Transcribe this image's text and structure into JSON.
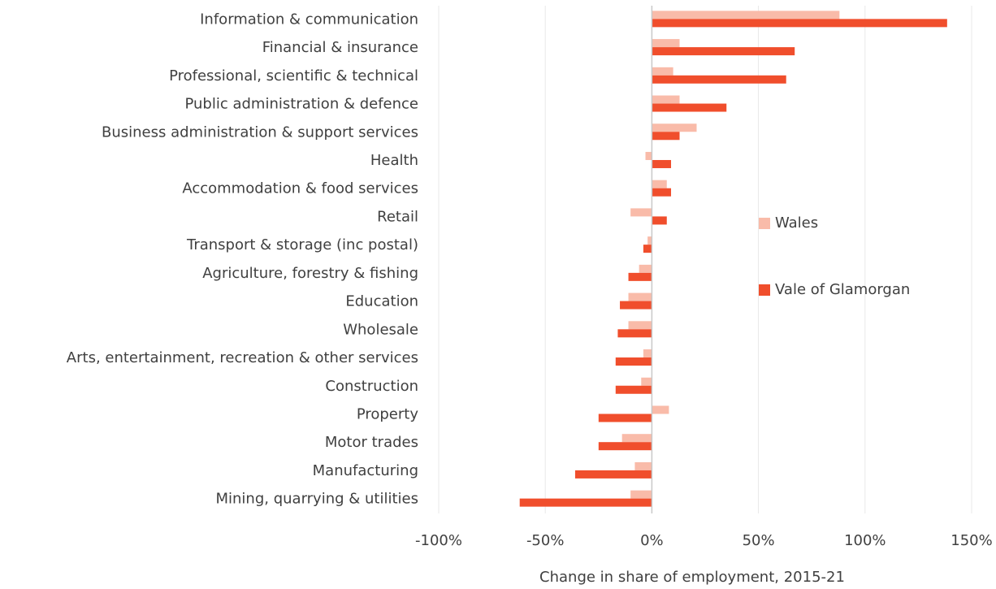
{
  "chart_data": {
    "type": "bar",
    "orientation": "horizontal",
    "x_label": "Change in share of employment, 2015-21",
    "categories": [
      "Information & communication",
      "Financial & insurance",
      "Professional, scientific & technical",
      "Public administration & defence",
      "Business administration & support services",
      "Health",
      "Accommodation & food services",
      "Retail",
      "Transport & storage (inc postal)",
      "Agriculture, forestry & fishing",
      "Education",
      "Wholesale",
      "Arts, entertainment, recreation & other services",
      "Construction",
      "Property",
      "Motor trades",
      "Manufacturing",
      "Mining, quarrying & utilities"
    ],
    "series": [
      {
        "name": "Wales",
        "color": "#f9bba9",
        "values": [
          88,
          13,
          10,
          13,
          21,
          -3,
          7,
          -10,
          -2,
          -6,
          -11,
          -11,
          -4,
          -5,
          8,
          -14,
          -8,
          -10
        ]
      },
      {
        "name": "Vale of Glamorgan",
        "color": "#f04e2c",
        "values": [
          138.5,
          67,
          63,
          35,
          13,
          9,
          9,
          7,
          -4,
          -11,
          -15,
          -16,
          -17,
          -17,
          -25,
          -25,
          -36,
          -62
        ]
      }
    ],
    "xlim": [
      -100,
      150
    ],
    "xticks": [
      {
        "value": -100,
        "label": "-100%"
      },
      {
        "value": -50,
        "label": "-50%"
      },
      {
        "value": 0,
        "label": "0%"
      },
      {
        "value": 50,
        "label": "50%"
      },
      {
        "value": 100,
        "label": "100%"
      },
      {
        "value": 150,
        "label": "150%"
      }
    ],
    "grid": true,
    "legend": "right"
  }
}
